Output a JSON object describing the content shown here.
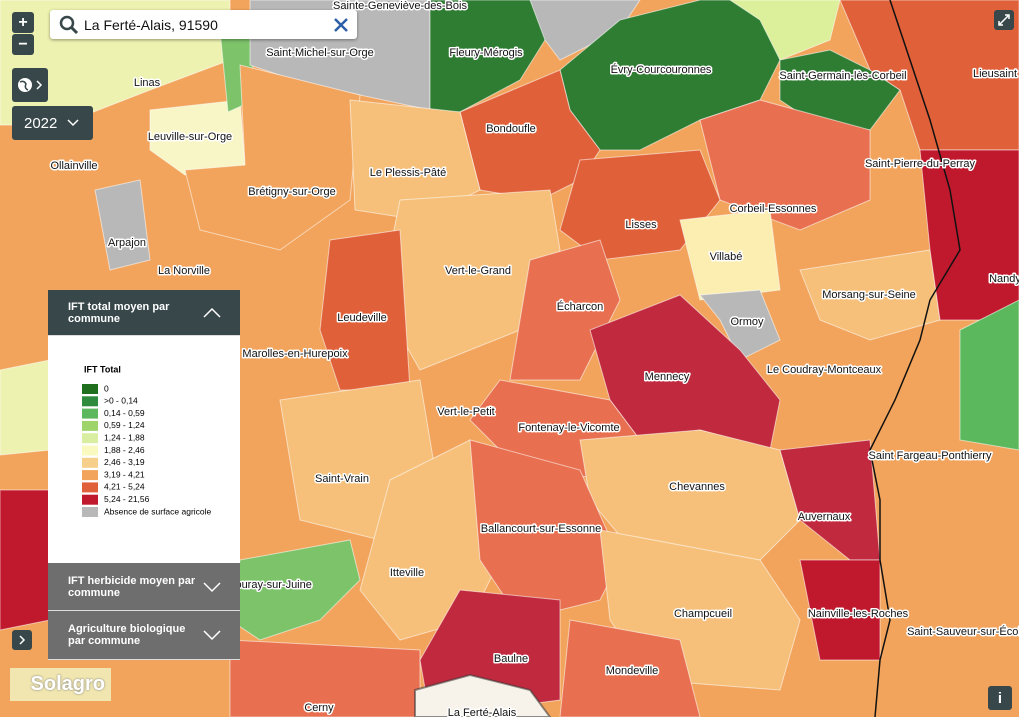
{
  "search": {
    "value": "La Ferté-Alais, 91590"
  },
  "zoom": {
    "in": "+",
    "out": "−"
  },
  "year": "2022",
  "panels": [
    {
      "title": "IFT total moyen par commune",
      "legend": {
        "title": "IFT Total",
        "items": [
          {
            "label": "0",
            "color": "#1f6f1f"
          },
          {
            "label": ">0  - 0,14",
            "color": "#2e8b3e"
          },
          {
            "label": "0,14 - 0,59",
            "color": "#5cb85c"
          },
          {
            "label": "0,59 - 1,24",
            "color": "#9fd46b"
          },
          {
            "label": "1,24 - 1,88",
            "color": "#d9eea0"
          },
          {
            "label": "1,88 - 2,46",
            "color": "#fafac0"
          },
          {
            "label": "2,46 - 3,19",
            "color": "#f6d08a"
          },
          {
            "label": "3,19 - 4,21",
            "color": "#f2a45c"
          },
          {
            "label": "4,21 - 5,24",
            "color": "#e0603a"
          },
          {
            "label": "5,24 - 21,56",
            "color": "#c0192e"
          },
          {
            "label": "Absence de surface agricole",
            "color": "#b8b8b8"
          }
        ]
      }
    },
    {
      "title": "IFT herbicide moyen par commune"
    },
    {
      "title": "Agriculture biologique par commune"
    }
  ],
  "map": {
    "labels": [
      "Sainte-Geneviève-des-Bois",
      "Fleury-Mérogis",
      "Saint-Michel-sur-Orge",
      "Évry-Courcouronnes",
      "Saint-Germain-lès-Corbeil",
      "Lieusaint",
      "Linas",
      "Leuville-sur-Orge",
      "Bondoufle",
      "Ollainville",
      "Le Plessis-Pâté",
      "Saint-Pierre-du-Perray",
      "Brétigny-sur-Orge",
      "Corbeil-Essonnes",
      "Lisses",
      "Arpajon",
      "Vert-le-Grand",
      "Villabé",
      "La Norville",
      "Nandy",
      "Écharcon",
      "Morsang-sur-Seine",
      "Leudeville",
      "Ormoy",
      "Marolles-en-Hurepoix",
      "Mennecy",
      "Le Coudray-Montceaux",
      "Vert-le-Petit",
      "Fontenay-le-Vicomte",
      "Saint Fargeau-Ponthierry",
      "Saint-Vrain",
      "Chevannes",
      "Auvernaux",
      "Ballancourt-sur-Essonne",
      "Itteville",
      "Bouray-sur-Juine",
      "Nainville-les-Roches",
      "Champcueil",
      "Saint-Sauveur-sur-École",
      "Baulne",
      "Mondeville",
      "Cerny",
      "La Ferté-Alais"
    ]
  },
  "logo": "Solagro",
  "info_button": "i"
}
